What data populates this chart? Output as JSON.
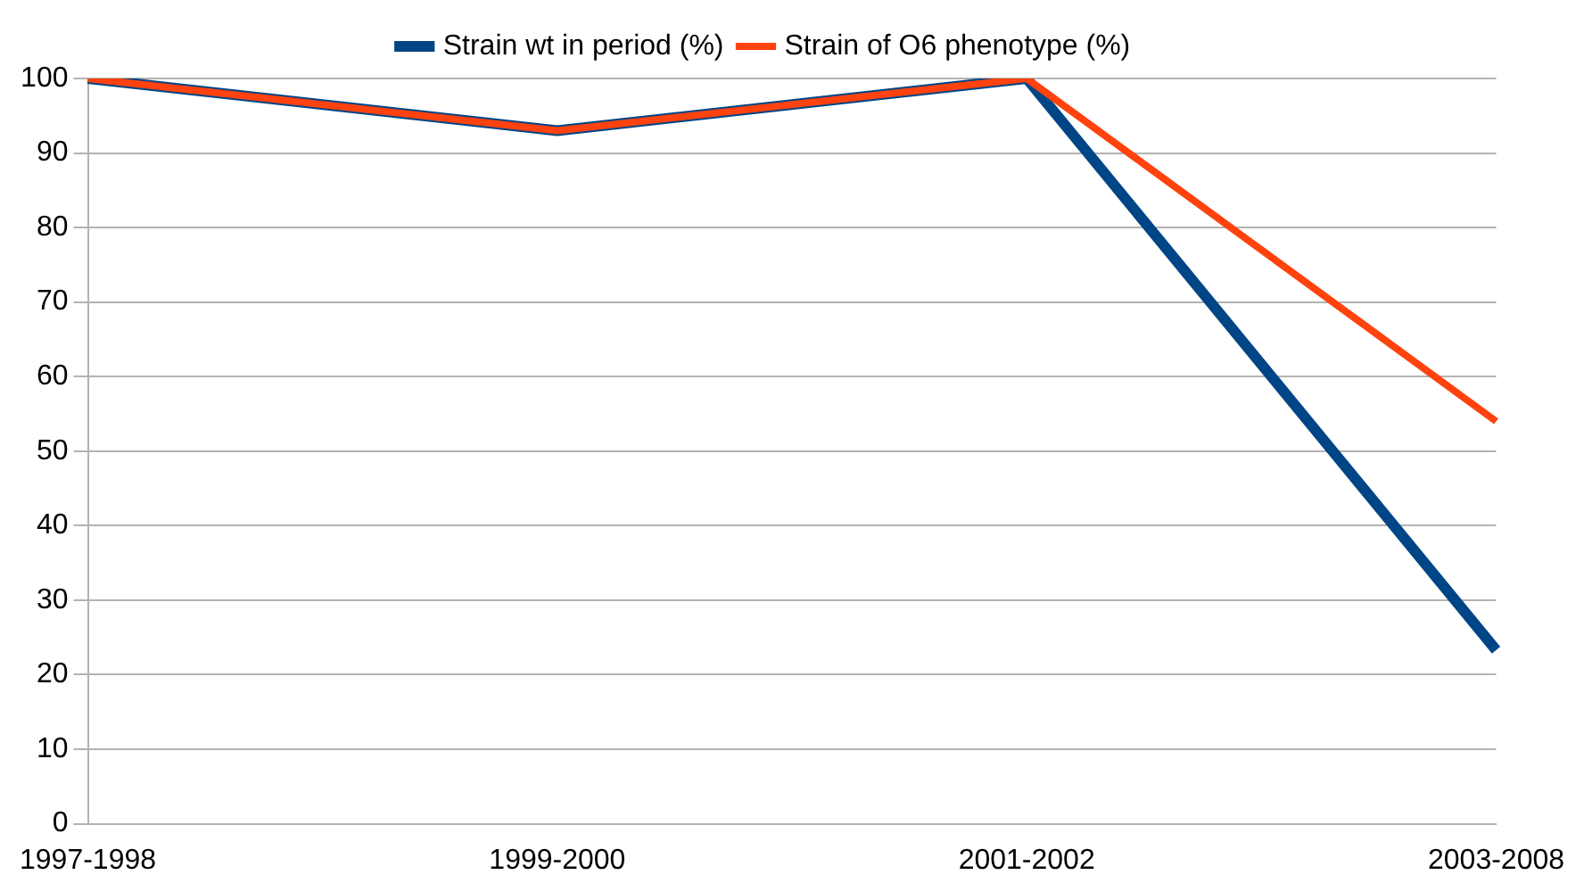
{
  "chart_data": {
    "type": "line",
    "categories": [
      "1997-1998",
      "1999-2000",
      "2001-2002",
      "2003-2008"
    ],
    "series": [
      {
        "name": "Strain wt in period (%)",
        "color": "#004586",
        "values": [
          100,
          93,
          100,
          23.3
        ]
      },
      {
        "name": "Strain of O6 phenotype (%)",
        "color": "#ff420e",
        "values": [
          100,
          93,
          100,
          54
        ]
      }
    ],
    "ylim": [
      0,
      100
    ],
    "yticks": [
      0,
      10,
      20,
      30,
      40,
      50,
      60,
      70,
      80,
      90,
      100
    ],
    "grid": "y",
    "legend": "top",
    "marker": "none",
    "line_style": "solid"
  }
}
